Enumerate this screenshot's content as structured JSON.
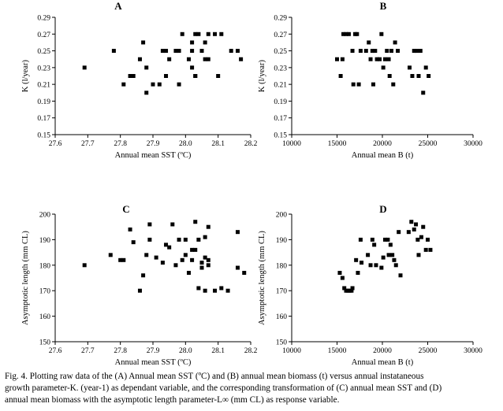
{
  "caption": {
    "line1": "Fig. 4. Plotting raw data of the (A) Annual mean SST (ºC) and (B) annual mean biomass (t) versus annual instataneous",
    "line2": "growth parameter-K. (year-1) as dependant variable, and the corresponding transformation of (C) annual mean SST and (D)",
    "line3": "annual mean biomass with the asymptotic length parameter-L∞ (mm CL) as response variable."
  },
  "chart_data": [
    {
      "id": "A",
      "type": "scatter",
      "title": "A",
      "xlabel": "Annual mean SST (ºC)",
      "ylabel": "K (l/year)",
      "xlim": [
        27.6,
        28.2
      ],
      "ylim": [
        0.15,
        0.29
      ],
      "x_ticks": [
        "27.6",
        "27.7",
        "27.8",
        "27.9",
        "28.0",
        "28.1",
        "28.2"
      ],
      "y_ticks": [
        "0.15",
        "0.17",
        "0.19",
        "0.21",
        "0.23",
        "0.25",
        "0.27",
        "0.29"
      ],
      "grid": false,
      "points": [
        [
          27.69,
          0.23
        ],
        [
          27.78,
          0.25
        ],
        [
          27.81,
          0.21
        ],
        [
          27.83,
          0.22
        ],
        [
          27.84,
          0.22
        ],
        [
          27.86,
          0.24
        ],
        [
          27.87,
          0.26
        ],
        [
          27.88,
          0.2
        ],
        [
          27.88,
          0.23
        ],
        [
          27.9,
          0.21
        ],
        [
          27.92,
          0.21
        ],
        [
          27.93,
          0.25
        ],
        [
          27.94,
          0.25
        ],
        [
          27.94,
          0.22
        ],
        [
          27.95,
          0.24
        ],
        [
          27.97,
          0.25
        ],
        [
          27.98,
          0.21
        ],
        [
          27.98,
          0.25
        ],
        [
          27.99,
          0.27
        ],
        [
          28.01,
          0.24
        ],
        [
          28.02,
          0.23
        ],
        [
          28.02,
          0.25
        ],
        [
          28.03,
          0.27
        ],
        [
          28.04,
          0.27
        ],
        [
          28.05,
          0.25
        ],
        [
          28.06,
          0.24
        ],
        [
          28.07,
          0.27
        ],
        [
          28.07,
          0.24
        ],
        [
          28.09,
          0.27
        ],
        [
          28.1,
          0.22
        ],
        [
          28.11,
          0.27
        ],
        [
          28.14,
          0.25
        ],
        [
          28.16,
          0.25
        ],
        [
          28.17,
          0.24
        ],
        [
          28.02,
          0.26
        ],
        [
          28.03,
          0.22
        ],
        [
          28.03,
          0.22
        ],
        [
          28.06,
          0.26
        ]
      ]
    },
    {
      "id": "B",
      "type": "scatter",
      "title": "B",
      "xlabel": "Annual mean B (t)",
      "ylabel": "K (l/year)",
      "xlim": [
        10000,
        30000
      ],
      "ylim": [
        0.15,
        0.29
      ],
      "x_ticks": [
        "10000",
        "15000",
        "20000",
        "25000",
        "30000"
      ],
      "y_ticks": [
        "0.15",
        "0.17",
        "0.19",
        "0.21",
        "0.23",
        "0.25",
        "0.27",
        "0.29"
      ],
      "grid": false,
      "points": [
        [
          15000,
          0.24
        ],
        [
          15400,
          0.22
        ],
        [
          15600,
          0.24
        ],
        [
          15700,
          0.27
        ],
        [
          16000,
          0.27
        ],
        [
          16300,
          0.27
        ],
        [
          16700,
          0.25
        ],
        [
          16800,
          0.21
        ],
        [
          17000,
          0.27
        ],
        [
          17200,
          0.27
        ],
        [
          17400,
          0.21
        ],
        [
          17600,
          0.25
        ],
        [
          18200,
          0.25
        ],
        [
          18500,
          0.26
        ],
        [
          18700,
          0.24
        ],
        [
          18900,
          0.25
        ],
        [
          19000,
          0.21
        ],
        [
          19200,
          0.25
        ],
        [
          19400,
          0.24
        ],
        [
          19700,
          0.24
        ],
        [
          19900,
          0.27
        ],
        [
          20100,
          0.23
        ],
        [
          20300,
          0.24
        ],
        [
          20500,
          0.25
        ],
        [
          20700,
          0.24
        ],
        [
          20800,
          0.22
        ],
        [
          21000,
          0.25
        ],
        [
          21200,
          0.21
        ],
        [
          21400,
          0.26
        ],
        [
          21700,
          0.25
        ],
        [
          23000,
          0.23
        ],
        [
          23300,
          0.22
        ],
        [
          23500,
          0.25
        ],
        [
          23800,
          0.25
        ],
        [
          24000,
          0.22
        ],
        [
          24200,
          0.25
        ],
        [
          24500,
          0.2
        ],
        [
          24800,
          0.23
        ],
        [
          25100,
          0.22
        ]
      ]
    },
    {
      "id": "C",
      "type": "scatter",
      "title": "C",
      "xlabel": "Annual mean SST (ºC)",
      "ylabel": "Asymptotic length (mm CL)",
      "xlim": [
        27.6,
        28.2
      ],
      "ylim": [
        150,
        200
      ],
      "x_ticks": [
        "27.6",
        "27.7",
        "27.8",
        "27.9",
        "28.0",
        "28.1",
        "28.2"
      ],
      "y_ticks": [
        "150",
        "160",
        "170",
        "180",
        "190",
        "200"
      ],
      "grid": false,
      "points": [
        [
          27.69,
          180
        ],
        [
          27.77,
          184
        ],
        [
          27.8,
          182
        ],
        [
          27.81,
          182
        ],
        [
          27.83,
          194
        ],
        [
          27.84,
          189
        ],
        [
          27.86,
          170
        ],
        [
          27.87,
          176
        ],
        [
          27.88,
          184
        ],
        [
          27.89,
          196
        ],
        [
          27.89,
          190
        ],
        [
          27.91,
          183
        ],
        [
          27.93,
          181
        ],
        [
          27.94,
          188
        ],
        [
          27.95,
          187
        ],
        [
          27.96,
          196
        ],
        [
          27.97,
          180
        ],
        [
          27.98,
          190
        ],
        [
          27.99,
          182
        ],
        [
          28.0,
          190
        ],
        [
          28.0,
          184
        ],
        [
          28.01,
          177
        ],
        [
          28.02,
          186
        ],
        [
          28.02,
          182
        ],
        [
          28.03,
          197
        ],
        [
          28.03,
          186
        ],
        [
          28.04,
          190
        ],
        [
          28.04,
          171
        ],
        [
          28.05,
          179
        ],
        [
          28.05,
          181
        ],
        [
          28.06,
          183
        ],
        [
          28.06,
          191
        ],
        [
          28.06,
          170
        ],
        [
          28.07,
          195
        ],
        [
          28.07,
          180
        ],
        [
          28.07,
          182
        ],
        [
          28.09,
          170
        ],
        [
          28.11,
          171
        ],
        [
          28.13,
          170
        ],
        [
          28.16,
          193
        ],
        [
          28.16,
          179
        ],
        [
          28.18,
          177
        ]
      ]
    },
    {
      "id": "D",
      "type": "scatter",
      "title": "D",
      "xlabel": "Annual mean B (t)",
      "ylabel": "Asymptotic length (mm CL)",
      "xlim": [
        10000,
        30000
      ],
      "ylim": [
        150,
        200
      ],
      "x_ticks": [
        "10000",
        "15000",
        "20000",
        "25000",
        "30000"
      ],
      "y_ticks": [
        "150",
        "160",
        "170",
        "180",
        "190",
        "200"
      ],
      "grid": false,
      "points": [
        [
          15300,
          177
        ],
        [
          15600,
          175
        ],
        [
          15800,
          171
        ],
        [
          16000,
          170
        ],
        [
          16200,
          170
        ],
        [
          16400,
          170
        ],
        [
          16600,
          170
        ],
        [
          16700,
          171
        ],
        [
          17100,
          182
        ],
        [
          17300,
          177
        ],
        [
          17600,
          190
        ],
        [
          17700,
          181
        ],
        [
          18400,
          184
        ],
        [
          18700,
          180
        ],
        [
          18900,
          190
        ],
        [
          19100,
          188
        ],
        [
          19300,
          180
        ],
        [
          19900,
          179
        ],
        [
          20100,
          183
        ],
        [
          20300,
          190
        ],
        [
          20600,
          190
        ],
        [
          20700,
          184
        ],
        [
          20900,
          188
        ],
        [
          21100,
          184
        ],
        [
          21300,
          182
        ],
        [
          21500,
          180
        ],
        [
          21800,
          193
        ],
        [
          22000,
          176
        ],
        [
          22900,
          193
        ],
        [
          23200,
          197
        ],
        [
          23500,
          194
        ],
        [
          23700,
          196
        ],
        [
          23900,
          190
        ],
        [
          24000,
          184
        ],
        [
          24300,
          191
        ],
        [
          24500,
          195
        ],
        [
          24800,
          186
        ],
        [
          25000,
          190
        ],
        [
          25300,
          186
        ]
      ]
    }
  ]
}
